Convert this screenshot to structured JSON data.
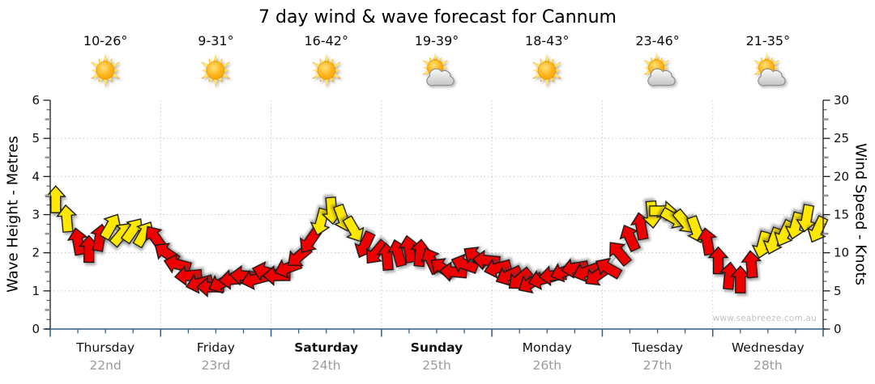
{
  "title": "7 day wind & wave forecast for Cannum",
  "watermark": "www.seabreeze.com.au",
  "axes": {
    "left": {
      "label": "Wave Height - Metres",
      "range": [
        0,
        6
      ],
      "major_ticks": [
        0,
        1,
        2,
        3,
        4,
        5,
        6
      ]
    },
    "right": {
      "label": "Wind Speed - Knots",
      "range": [
        0,
        30
      ],
      "major_ticks": [
        0,
        5,
        10,
        15,
        20,
        25,
        30
      ]
    }
  },
  "days": [
    {
      "name": "Thursday",
      "date": "22nd",
      "temp": "10-26°",
      "icon": "sunny",
      "bold": false
    },
    {
      "name": "Friday",
      "date": "23rd",
      "temp": "9-31°",
      "icon": "sunny",
      "bold": false
    },
    {
      "name": "Saturday",
      "date": "24th",
      "temp": "16-42°",
      "icon": "sunny",
      "bold": true
    },
    {
      "name": "Sunday",
      "date": "25th",
      "temp": "19-39°",
      "icon": "partly-cloudy",
      "bold": true
    },
    {
      "name": "Monday",
      "date": "26th",
      "temp": "18-43°",
      "icon": "sunny",
      "bold": false
    },
    {
      "name": "Tuesday",
      "date": "27th",
      "temp": "23-46°",
      "icon": "partly-cloudy",
      "bold": false
    },
    {
      "name": "Wednesday",
      "date": "28th",
      "temp": "21-35°",
      "icon": "partly-cloudy",
      "bold": false
    }
  ],
  "colors": {
    "arrow_red": "#ee0000",
    "arrow_yellow": "#ffe800",
    "arrow_outline": "#161616",
    "x_axis": "#2e5c85",
    "y_axis": "#1a1a1a",
    "grid": "#c9c9c9",
    "half_tick": "#979797",
    "wind_line": "#b8b8b8",
    "date_text": "#9a9a9a",
    "watermark_text": "#c2c2c2"
  },
  "chart_data": {
    "type": "scatter",
    "title": "7 day wind & wave forecast for Cannum",
    "x_categories": [
      "Thursday 22nd",
      "Friday 23rd",
      "Saturday 24th",
      "Sunday 25th",
      "Monday 26th",
      "Tuesday 27th",
      "Wednesday 28th"
    ],
    "y_left": {
      "label": "Wave Height - Metres",
      "range": [
        0,
        6
      ],
      "gridlines": [
        1,
        2,
        3,
        4,
        5
      ]
    },
    "y_right": {
      "label": "Wind Speed - Knots",
      "range": [
        0,
        30
      ],
      "gridlines": [
        5,
        10,
        15,
        20,
        25
      ]
    },
    "grid": "dotted horizontal at whole metres, dotted vertical at day boundaries",
    "series_note": "Each arrow = wind sample: [speed_knots, direction_deg (0=up/N, clockwise), color Y=yellow R=red]; 10 uniformly spaced samples per day, connected by a grey wind-speed line read on the right axis.",
    "points_per_day": 10,
    "arrows": [
      [
        17,
        0,
        "Y"
      ],
      [
        14.5,
        355,
        "Y"
      ],
      [
        11.5,
        350,
        "R"
      ],
      [
        10.5,
        0,
        "R"
      ],
      [
        12,
        10,
        "R"
      ],
      [
        13.5,
        30,
        "Y"
      ],
      [
        12.5,
        40,
        "Y"
      ],
      [
        13,
        35,
        "Y"
      ],
      [
        12.5,
        30,
        "Y"
      ],
      [
        12,
        325,
        "R"
      ],
      [
        10,
        305,
        "R"
      ],
      [
        8.5,
        285,
        "R"
      ],
      [
        7,
        265,
        "R"
      ],
      [
        6,
        255,
        "R"
      ],
      [
        5.5,
        270,
        "R"
      ],
      [
        6,
        245,
        "R"
      ],
      [
        6.5,
        265,
        "R"
      ],
      [
        7,
        275,
        "R"
      ],
      [
        6.5,
        255,
        "R"
      ],
      [
        7.5,
        285,
        "R"
      ],
      [
        7,
        270,
        "R"
      ],
      [
        8,
        250,
        "R"
      ],
      [
        9.5,
        230,
        "R"
      ],
      [
        11.5,
        215,
        "R"
      ],
      [
        14,
        195,
        "Y"
      ],
      [
        15.5,
        175,
        "Y"
      ],
      [
        14.5,
        160,
        "Y"
      ],
      [
        13,
        150,
        "Y"
      ],
      [
        11,
        205,
        "R"
      ],
      [
        10,
        220,
        "R"
      ],
      [
        9.5,
        355,
        "R"
      ],
      [
        10,
        345,
        "R"
      ],
      [
        10.5,
        350,
        "R"
      ],
      [
        10,
        5,
        "R"
      ],
      [
        9,
        335,
        "R"
      ],
      [
        8,
        305,
        "R"
      ],
      [
        7.5,
        275,
        "R"
      ],
      [
        8.5,
        290,
        "R"
      ],
      [
        9.5,
        305,
        "R"
      ],
      [
        9,
        275,
        "R"
      ],
      [
        8,
        255,
        "R"
      ],
      [
        7,
        245,
        "R"
      ],
      [
        6.5,
        230,
        "R"
      ],
      [
        6,
        240,
        "R"
      ],
      [
        6.5,
        255,
        "R"
      ],
      [
        7,
        265,
        "R"
      ],
      [
        7.5,
        250,
        "R"
      ],
      [
        8,
        260,
        "R"
      ],
      [
        7.5,
        250,
        "R"
      ],
      [
        7,
        235,
        "R"
      ],
      [
        8,
        300,
        "R"
      ],
      [
        10,
        320,
        "R"
      ],
      [
        12,
        335,
        "R"
      ],
      [
        13.5,
        350,
        "R"
      ],
      [
        15,
        175,
        "Y"
      ],
      [
        15.5,
        90,
        "Y"
      ],
      [
        14.5,
        120,
        "Y"
      ],
      [
        14,
        140,
        "Y"
      ],
      [
        13,
        160,
        "Y"
      ],
      [
        11.5,
        350,
        "R"
      ],
      [
        9,
        0,
        "R"
      ],
      [
        7,
        5,
        "R"
      ],
      [
        6.5,
        0,
        "R"
      ],
      [
        8.5,
        355,
        "R"
      ],
      [
        11,
        195,
        "Y"
      ],
      [
        11.5,
        200,
        "Y"
      ],
      [
        12.5,
        205,
        "Y"
      ],
      [
        13.5,
        195,
        "Y"
      ],
      [
        14.5,
        190,
        "Y"
      ],
      [
        13,
        205,
        "Y"
      ]
    ]
  }
}
